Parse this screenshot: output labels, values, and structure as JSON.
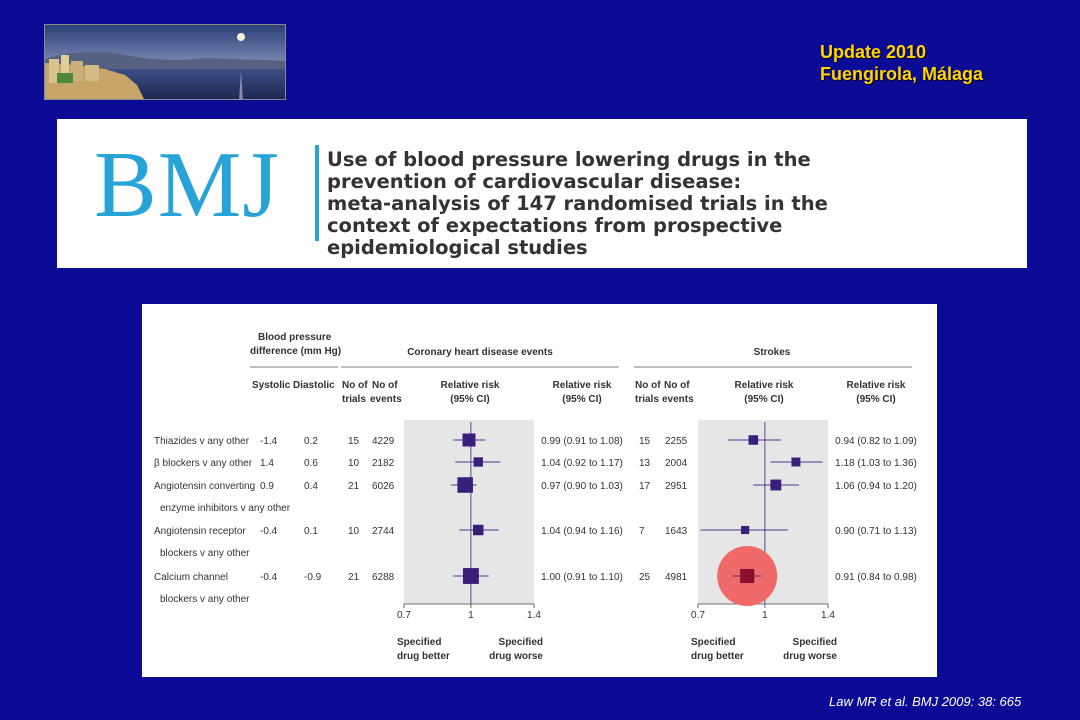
{
  "header": {
    "conference_line1": "Update 2010",
    "conference_line2": "Fuengirola, Málaga"
  },
  "banner": {
    "logo": "BMJ",
    "title_lines": [
      "Use of blood pressure lowering drugs in the",
      "prevention of cardiovascular disease:",
      "meta-analysis of 147 randomised trials in the",
      "context of expectations from prospective",
      "epidemiological studies"
    ]
  },
  "figure": {
    "bp_header_line1": "Blood pressure",
    "bp_header_line2": "difference (mm Hg)",
    "systolic_label": "Systolic",
    "diastolic_label": "Diastolic",
    "chd_header": "Coronary heart disease events",
    "strokes_header": "Strokes",
    "no_of_trials_line1": "No of",
    "no_of_trials_line2": "trials",
    "no_of_events_line1": "No of",
    "no_of_events_line2": "events",
    "relative_risk_line1": "Relative risk",
    "relative_risk_line2": "(95% CI)",
    "x_ticks": [
      "0.7",
      "1",
      "1.4"
    ],
    "specified_better_line1": "Specified",
    "specified_better_line2": "drug better",
    "specified_worse_line1": "Specified",
    "specified_worse_line2": "drug worse"
  },
  "chart_data": {
    "type": "forest",
    "x_scale": "log",
    "xlim": [
      0.7,
      1.4
    ],
    "x_ticks": [
      0.7,
      1,
      1.4
    ],
    "rows": [
      {
        "label_lines": [
          "Thiazides v any other"
        ],
        "systolic": "-1.4",
        "diastolic": "0.2",
        "chd": {
          "trials": "15",
          "events": "4229",
          "rr": 0.99,
          "lo": 0.91,
          "hi": 1.08,
          "text": "0.99 (0.91 to 1.08)"
        },
        "stroke": {
          "trials": "15",
          "events": "2255",
          "rr": 0.94,
          "lo": 0.82,
          "hi": 1.09,
          "text": "0.94 (0.82 to 1.09)"
        }
      },
      {
        "label_lines": [
          "β blockers v any other"
        ],
        "systolic": "1.4",
        "diastolic": "0.6",
        "chd": {
          "trials": "10",
          "events": "2182",
          "rr": 1.04,
          "lo": 0.92,
          "hi": 1.17,
          "text": "1.04 (0.92 to 1.17)"
        },
        "stroke": {
          "trials": "13",
          "events": "2004",
          "rr": 1.18,
          "lo": 1.03,
          "hi": 1.36,
          "text": "1.18 (1.03 to 1.36)"
        }
      },
      {
        "label_lines": [
          "Angiotensin converting",
          "enzyme inhibitors v any other"
        ],
        "systolic": "0.9",
        "diastolic": "0.4",
        "chd": {
          "trials": "21",
          "events": "6026",
          "rr": 0.97,
          "lo": 0.9,
          "hi": 1.03,
          "text": "0.97 (0.90 to 1.03)"
        },
        "stroke": {
          "trials": "17",
          "events": "2951",
          "rr": 1.06,
          "lo": 0.94,
          "hi": 1.2,
          "text": "1.06 (0.94 to 1.20)"
        }
      },
      {
        "label_lines": [
          "Angiotensin receptor",
          "blockers v any other"
        ],
        "systolic": "-0.4",
        "diastolic": "0.1",
        "chd": {
          "trials": "10",
          "events": "2744",
          "rr": 1.04,
          "lo": 0.94,
          "hi": 1.16,
          "text": "1.04 (0.94 to 1.16)"
        },
        "stroke": {
          "trials": "7",
          "events": "1643",
          "rr": 0.9,
          "lo": 0.71,
          "hi": 1.13,
          "text": "0.90 (0.71 to 1.13)"
        }
      },
      {
        "label_lines": [
          "Calcium channel",
          "blockers v any other"
        ],
        "systolic": "-0.4",
        "diastolic": "-0.9",
        "chd": {
          "trials": "21",
          "events": "6288",
          "rr": 1.0,
          "lo": 0.91,
          "hi": 1.1,
          "text": "1.00 (0.91 to 1.10)"
        },
        "stroke": {
          "trials": "25",
          "events": "4981",
          "rr": 0.91,
          "lo": 0.84,
          "hi": 0.98,
          "text": "0.91 (0.84 to 0.98)",
          "highlighted": true
        }
      }
    ]
  },
  "citation": "Law MR et al. BMJ  2009: 38: 665",
  "colors": {
    "background": "#0b0b96",
    "conference_text": "#ffd400",
    "bmj_blue": "#27a3d8",
    "marker": "#3a1f7a",
    "highlight_marker": "#8b1030",
    "highlight_circle": "#f06a6a"
  }
}
